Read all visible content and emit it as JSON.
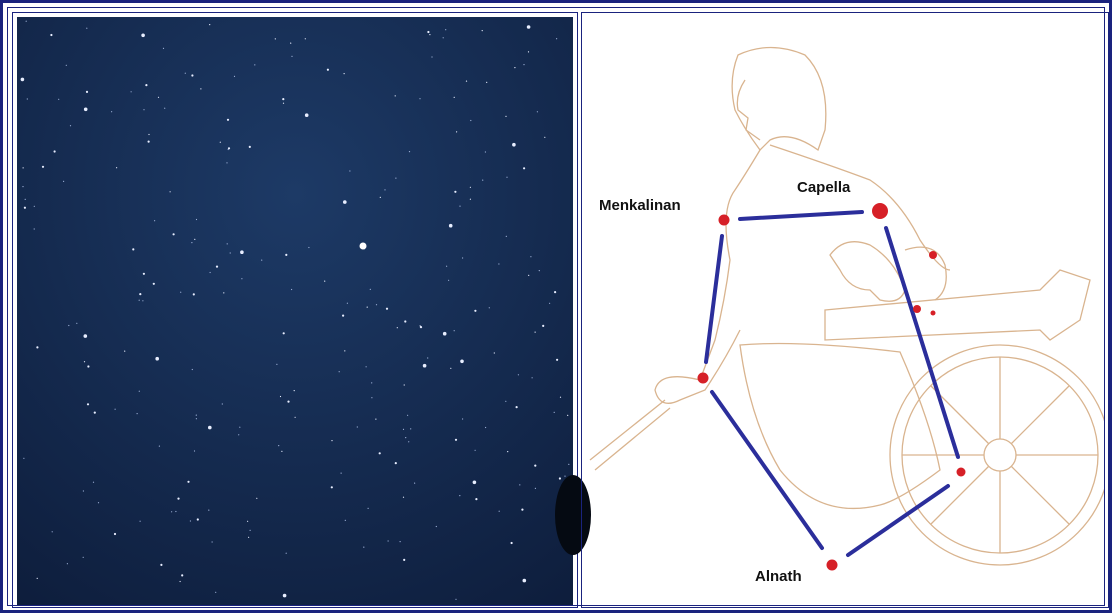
{
  "labels": {
    "menkalinan": "Menkalinan",
    "capella": "Capella",
    "alnath": "Alnath"
  }
}
